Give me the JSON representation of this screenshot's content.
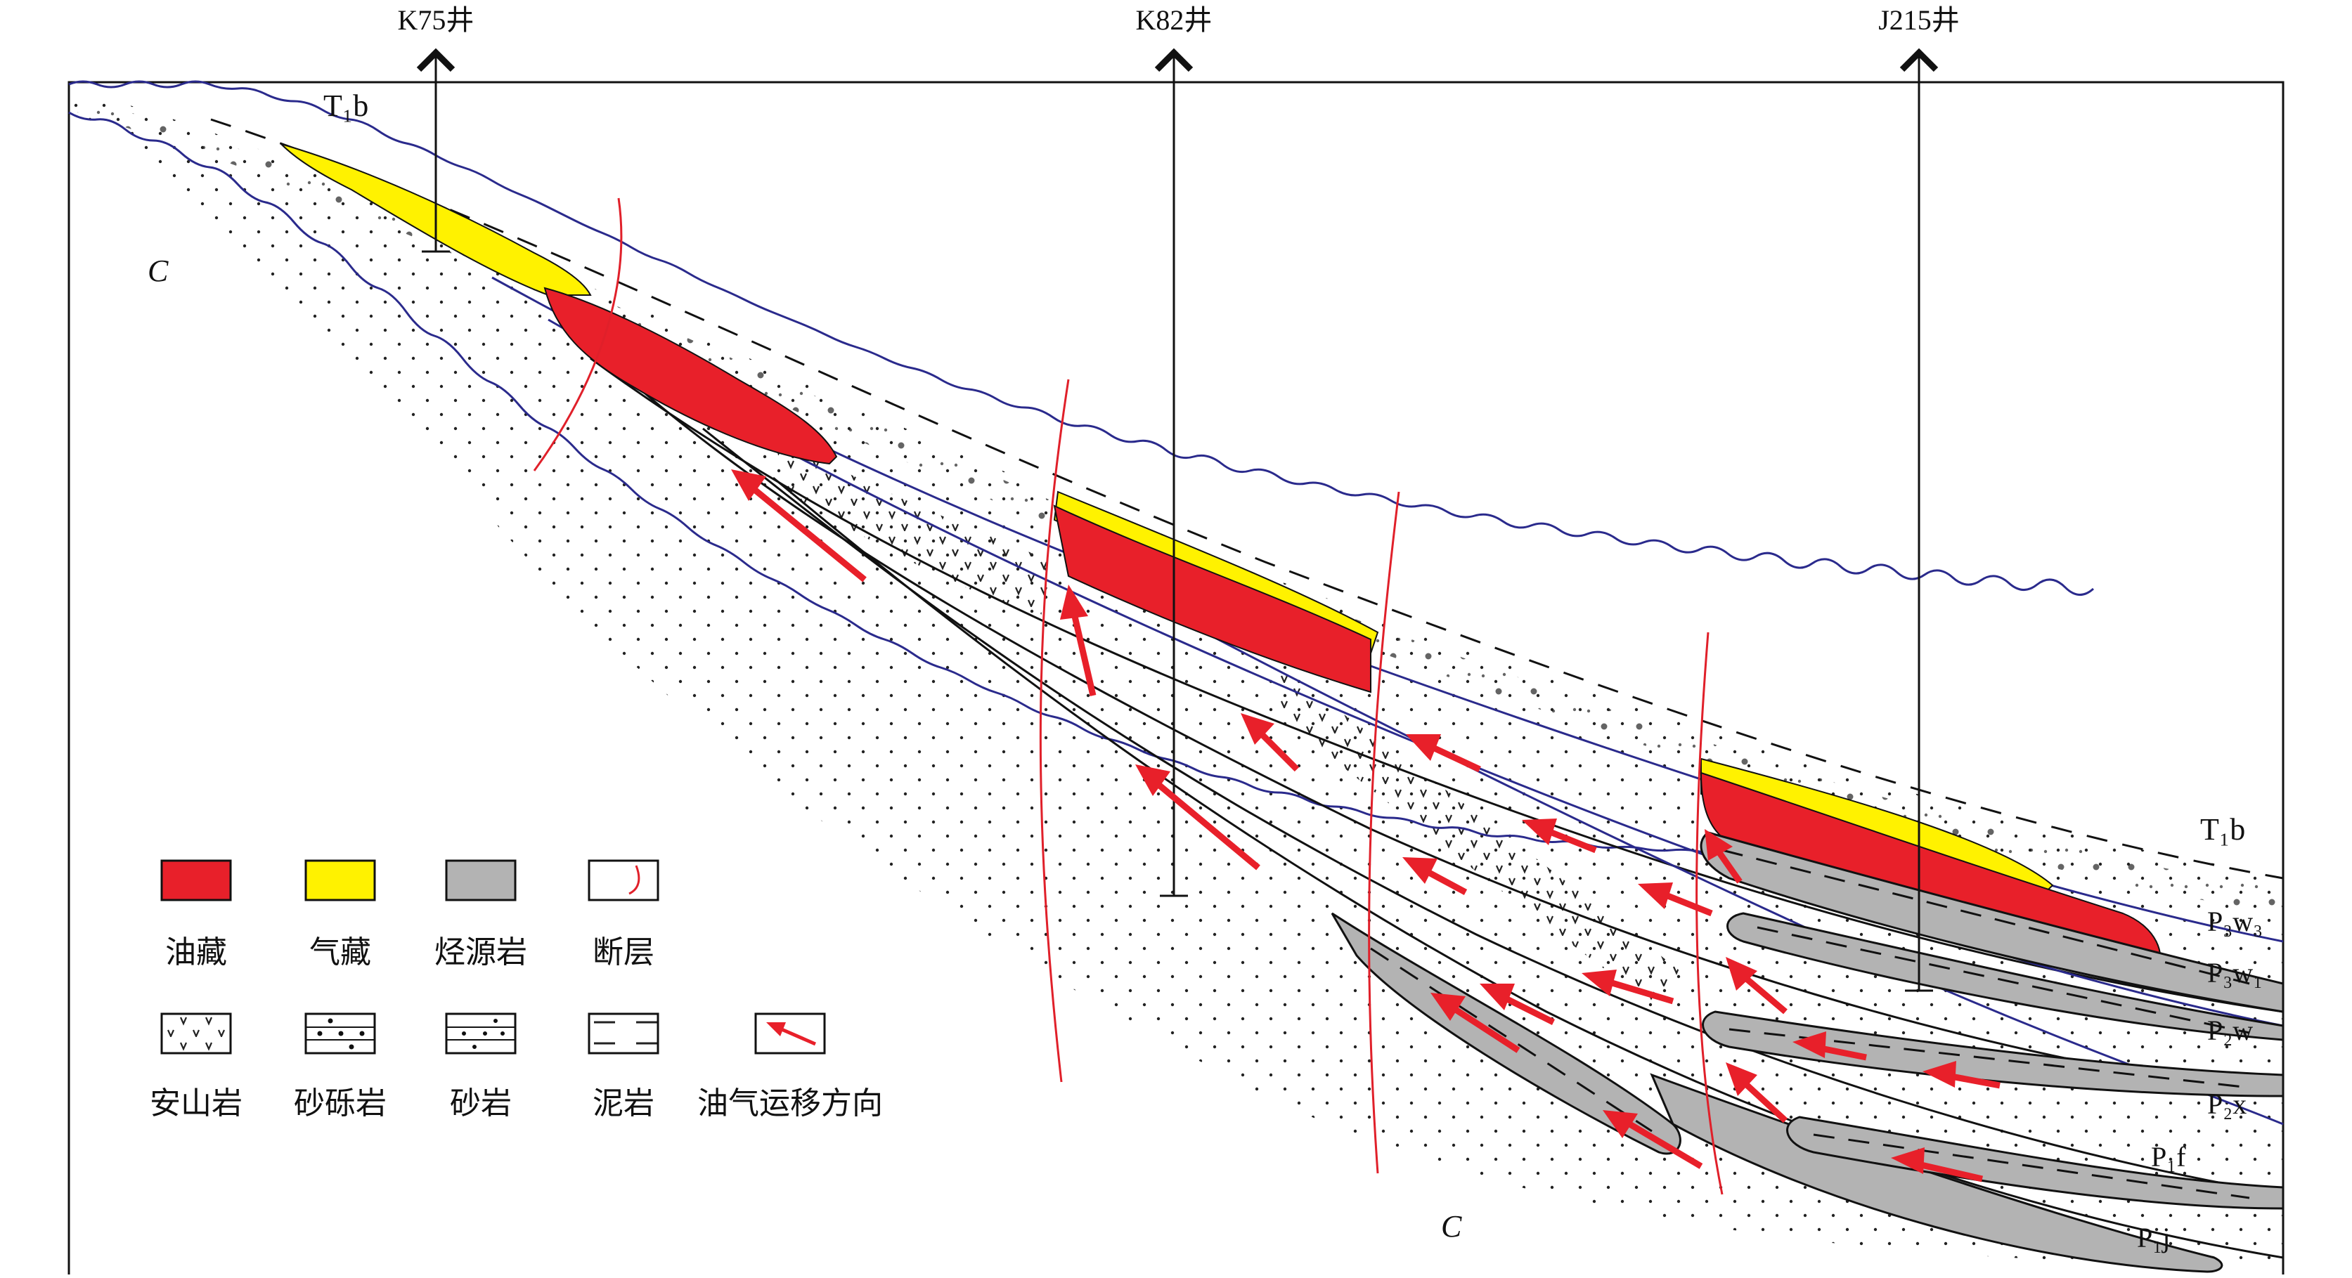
{
  "wells": [
    {
      "name": "K75井"
    },
    {
      "name": "K82井"
    },
    {
      "name": "J215井"
    }
  ],
  "basement_label": "C",
  "formations": {
    "top": "T₁b",
    "p3w3": "P₃w₃",
    "p3w1": "P₃w₁",
    "p2w": "P₂w",
    "p2x": "P₂x",
    "p1f": "P₁f",
    "p1j": "P₁j"
  },
  "legend": {
    "row1": [
      "油藏",
      "气藏",
      "烃源岩",
      "断层"
    ],
    "row2": [
      "安山岩",
      "砂砾岩",
      "砂岩",
      "泥岩",
      "油气运移方向"
    ]
  },
  "colors": {
    "oil": "#e8202a",
    "gas": "#fff200",
    "source_rock": "#b3b3b3",
    "fault": "#e0202a",
    "horizon_blue": "#2a2a8c",
    "arrow": "#e8202a"
  }
}
